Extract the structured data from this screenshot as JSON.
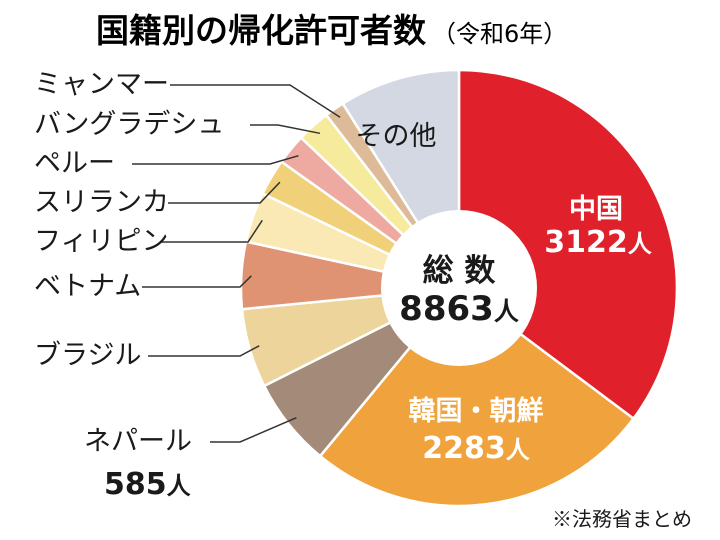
{
  "title": "国籍別の帰化許可者数",
  "subtitle": "（令和6年）",
  "source_note": "※法務省まとめ",
  "center": {
    "label": "総 数",
    "value": "8863",
    "unit": "人"
  },
  "chart_data": {
    "type": "pie",
    "title": "国籍別の帰化許可者数",
    "total": 8863,
    "unit": "人",
    "slices": [
      {
        "label": "中国",
        "value": 3122,
        "value_text": "3122",
        "color": "#e0202a"
      },
      {
        "label": "韓国・朝鮮",
        "value": 2283,
        "value_text": "2283",
        "color": "#f0a23c"
      },
      {
        "label": "ネパール",
        "value": 585,
        "value_text": "585",
        "color": "#a48a78"
      },
      {
        "label": "ブラジル",
        "value": 520,
        "color": "#ecd49a"
      },
      {
        "label": "ベトナム",
        "value": 440,
        "color": "#e09373"
      },
      {
        "label": "フィリピン",
        "value": 330,
        "color": "#fae9b4"
      },
      {
        "label": "スリランカ",
        "value": 240,
        "color": "#f0d078"
      },
      {
        "label": "ペルー",
        "value": 200,
        "color": "#eeaaa0"
      },
      {
        "label": "バングラデシュ",
        "value": 220,
        "color": "#f6ea9c"
      },
      {
        "label": "ミャンマー",
        "value": 130,
        "color": "#ddbb98"
      },
      {
        "label": "その他",
        "value": 793,
        "color": "#d3d8e3"
      }
    ]
  }
}
